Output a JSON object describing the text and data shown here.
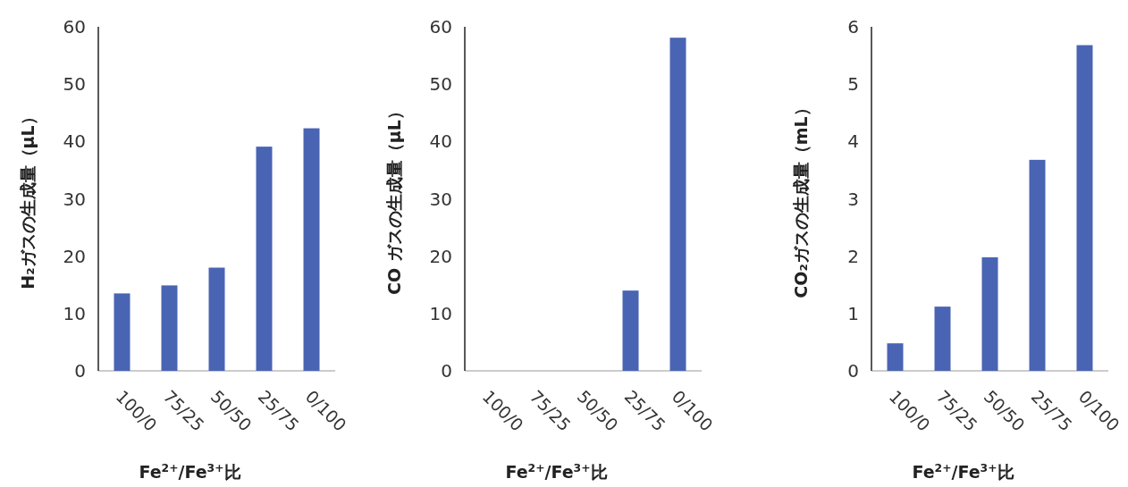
{
  "chart_data": [
    {
      "type": "bar",
      "categories": [
        "100/0",
        "75/25",
        "50/50",
        "25/75",
        "0/100"
      ],
      "values": [
        13.5,
        14.9,
        18,
        39.1,
        42.3
      ],
      "color": "#4a64b4",
      "ylim": [
        0,
        60
      ],
      "yticks": [
        0,
        10,
        20,
        30,
        40,
        50,
        60
      ],
      "ylabel": "H₂ガスの生成量（μL）",
      "xlabel": "Fe$^{2+}$/Fe$^{3+}$比"
    },
    {
      "type": "bar",
      "categories": [
        "100/0",
        "75/25",
        "50/50",
        "25/75",
        "0/100"
      ],
      "values": [
        0,
        0,
        0,
        14,
        58.1
      ],
      "color": "#4a64b4",
      "ylim": [
        0,
        60
      ],
      "yticks": [
        0,
        10,
        20,
        30,
        40,
        50,
        60
      ],
      "ylabel": "CO ガスの生成量（μL）",
      "xlabel": "Fe$^{2+}$/Fe$^{3+}$比"
    },
    {
      "type": "bar",
      "categories": [
        "100/0",
        "75/25",
        "50/50",
        "25/75",
        "0/100"
      ],
      "values": [
        0.48,
        1.12,
        1.98,
        3.68,
        5.68
      ],
      "color": "#4a64b4",
      "ylim": [
        0,
        6
      ],
      "yticks": [
        0,
        1,
        2,
        3,
        4,
        5,
        6
      ],
      "ylabel": "CO₂ガスの生成量（mL）",
      "xlabel": "Fe$^{2+}$/Fe$^{3+}$比"
    }
  ]
}
